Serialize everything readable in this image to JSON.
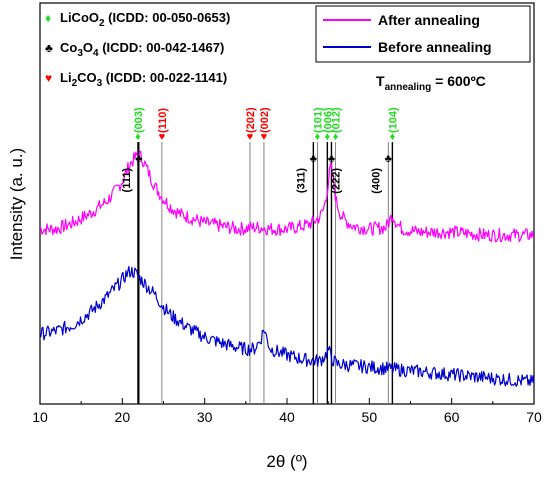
{
  "colors": {
    "licoo2": "#22dd22",
    "co3o4": "#000000",
    "li2co3": "#ff0000",
    "after": "#ff00ff",
    "before": "#0000cc"
  },
  "phases": [
    {
      "symbol": "♦",
      "name": "LiCoO",
      "sub": "2",
      "rest": "",
      "icdd": " (ICDD: 00-050-0653)",
      "icon": "diamond-icon",
      "color": "#22dd22"
    },
    {
      "symbol": "♣",
      "name": "Co",
      "sub": "3",
      "rest": "O",
      "sub2": "4",
      "icdd": " (ICDD: 00-042-1467)",
      "icon": "club-icon",
      "color": "#000000"
    },
    {
      "symbol": "♥",
      "name": "Li",
      "sub": "2",
      "rest": "CO",
      "sub2": "3",
      "icdd": " (ICDD: 00-022-1141)",
      "icon": "heart-icon",
      "color": "#ff0000"
    }
  ],
  "annealing": {
    "prefix": "T",
    "sub": "annealing",
    "value": " = 600ºC"
  },
  "chart_data": {
    "type": "line",
    "xlabel": "2θ (º)",
    "ylabel": "Intensity (a. u.)",
    "xlim": [
      10,
      70
    ],
    "xticks": [
      "10",
      "20",
      "30",
      "40",
      "50",
      "60",
      "70"
    ],
    "legend_position": "top-right",
    "series": [
      {
        "name": "After annealing",
        "color": "#ff00ff",
        "x": [
          10,
          12,
          14,
          16,
          18,
          19,
          20,
          21,
          22,
          22.5,
          23,
          24,
          25,
          26,
          27,
          28,
          30,
          32,
          34,
          36,
          37,
          38,
          40,
          42,
          43,
          44,
          44.5,
          45,
          45.3,
          45.6,
          46,
          46.5,
          47,
          48,
          50,
          52,
          52.5,
          52.8,
          53.3,
          54,
          56,
          58,
          60,
          62,
          64,
          66,
          68,
          70
        ],
        "y": [
          0.57,
          0.57,
          0.59,
          0.62,
          0.66,
          0.69,
          0.73,
          0.79,
          0.82,
          0.8,
          0.77,
          0.71,
          0.67,
          0.64,
          0.62,
          0.61,
          0.59,
          0.58,
          0.57,
          0.575,
          0.575,
          0.57,
          0.57,
          0.58,
          0.59,
          0.61,
          0.64,
          0.72,
          0.78,
          0.74,
          0.66,
          0.62,
          0.6,
          0.58,
          0.57,
          0.575,
          0.6,
          0.62,
          0.59,
          0.57,
          0.56,
          0.56,
          0.56,
          0.555,
          0.55,
          0.55,
          0.55,
          0.55
        ]
      },
      {
        "name": "Before annealing",
        "color": "#0000cc",
        "x": [
          10,
          12,
          14,
          16,
          18,
          19,
          20,
          20.5,
          21,
          21.5,
          22,
          23,
          24,
          25,
          26,
          28,
          30,
          32,
          34,
          35,
          36,
          36.8,
          37.2,
          37.6,
          38,
          39,
          40,
          42,
          44,
          44.7,
          45,
          45.4,
          46,
          48,
          50,
          52,
          54,
          56,
          58,
          60,
          62,
          64,
          66,
          68,
          70
        ],
        "y": [
          0.22,
          0.23,
          0.25,
          0.29,
          0.34,
          0.37,
          0.4,
          0.42,
          0.43,
          0.425,
          0.41,
          0.38,
          0.35,
          0.31,
          0.28,
          0.24,
          0.21,
          0.19,
          0.175,
          0.17,
          0.17,
          0.2,
          0.24,
          0.2,
          0.17,
          0.16,
          0.15,
          0.135,
          0.13,
          0.15,
          0.17,
          0.14,
          0.12,
          0.115,
          0.11,
          0.105,
          0.1,
          0.095,
          0.09,
          0.085,
          0.08,
          0.075,
          0.07,
          0.065,
          0.06
        ]
      }
    ],
    "reference_lines": [
      {
        "x": 21.9,
        "phase": "LiCoO2",
        "label": "(003)",
        "color": "#22dd22",
        "symbol": "♦",
        "line": "thick"
      },
      {
        "x": 22.0,
        "phase": "Co3O4",
        "label": "(111)",
        "color": "#000000",
        "symbol": "♣",
        "line": "thick"
      },
      {
        "x": 24.8,
        "phase": "Li2CO3",
        "label": "(110)",
        "color": "#ff0000",
        "symbol": "♥",
        "line": "thin"
      },
      {
        "x": 35.5,
        "phase": "Li2CO3",
        "label": "(202)",
        "color": "#ff0000",
        "symbol": "♥",
        "line": "thin"
      },
      {
        "x": 37.2,
        "phase": "Li2CO3",
        "label": "(002)",
        "color": "#ff0000",
        "symbol": "♥",
        "line": "thin"
      },
      {
        "x": 43.2,
        "phase": "Co3O4",
        "label": "(311)",
        "color": "#000000",
        "symbol": "♣",
        "line": "thick"
      },
      {
        "x": 43.7,
        "phase": "LiCoO2",
        "label": "(101)",
        "color": "#22dd22",
        "symbol": "♦",
        "line": "thin"
      },
      {
        "x": 44.9,
        "phase": "LiCoO2",
        "label": "(006)",
        "color": "#22dd22",
        "symbol": "♦",
        "line": "thick"
      },
      {
        "x": 45.4,
        "phase": "Co3O4",
        "label": "(222)",
        "color": "#000000",
        "symbol": "♣",
        "line": "thick"
      },
      {
        "x": 45.9,
        "phase": "LiCoO2",
        "label": "(012)",
        "color": "#22dd22",
        "symbol": "♦",
        "line": "thin"
      },
      {
        "x": 52.3,
        "phase": "Co3O4",
        "label": "(400)",
        "color": "#000000",
        "symbol": "♣",
        "line": "thin"
      },
      {
        "x": 52.8,
        "phase": "LiCoO2",
        "label": "(104)",
        "color": "#22dd22",
        "symbol": "♦",
        "line": "thick"
      }
    ]
  }
}
